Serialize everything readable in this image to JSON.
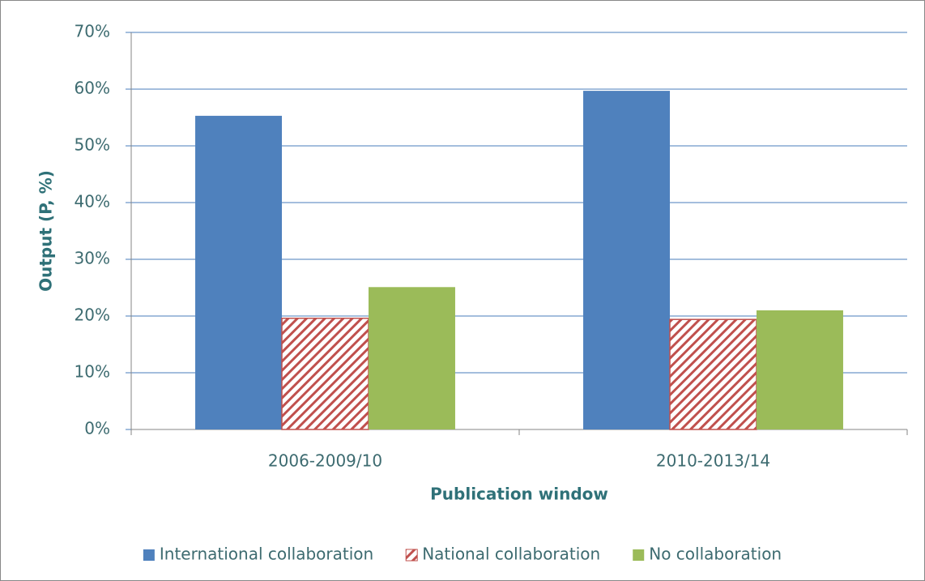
{
  "chart_data": {
    "type": "bar",
    "categories": [
      "2006-2009/10",
      "2010-2013/14"
    ],
    "series": [
      {
        "name": "International collaboration",
        "color": "#4f81bd",
        "values": [
          55.3,
          59.7
        ]
      },
      {
        "name": "National collaboration",
        "color": "#c0504d",
        "pattern": "hatch",
        "values": [
          19.6,
          19.4
        ]
      },
      {
        "name": "No collaboration",
        "color": "#9bbb59",
        "values": [
          25.1,
          21.0
        ]
      }
    ],
    "xlabel": "Publication window",
    "ylabel": "Output (P, %)",
    "ylim": [
      0,
      70
    ],
    "yticks": [
      {
        "value": 0,
        "label": "0%"
      },
      {
        "value": 10,
        "label": "10%"
      },
      {
        "value": 20,
        "label": "20%"
      },
      {
        "value": 30,
        "label": "30%"
      },
      {
        "value": 40,
        "label": "40%"
      },
      {
        "value": 50,
        "label": "50%"
      },
      {
        "value": 60,
        "label": "60%"
      },
      {
        "value": 70,
        "label": "70%"
      }
    ],
    "grid": true,
    "legend": "bottom"
  }
}
